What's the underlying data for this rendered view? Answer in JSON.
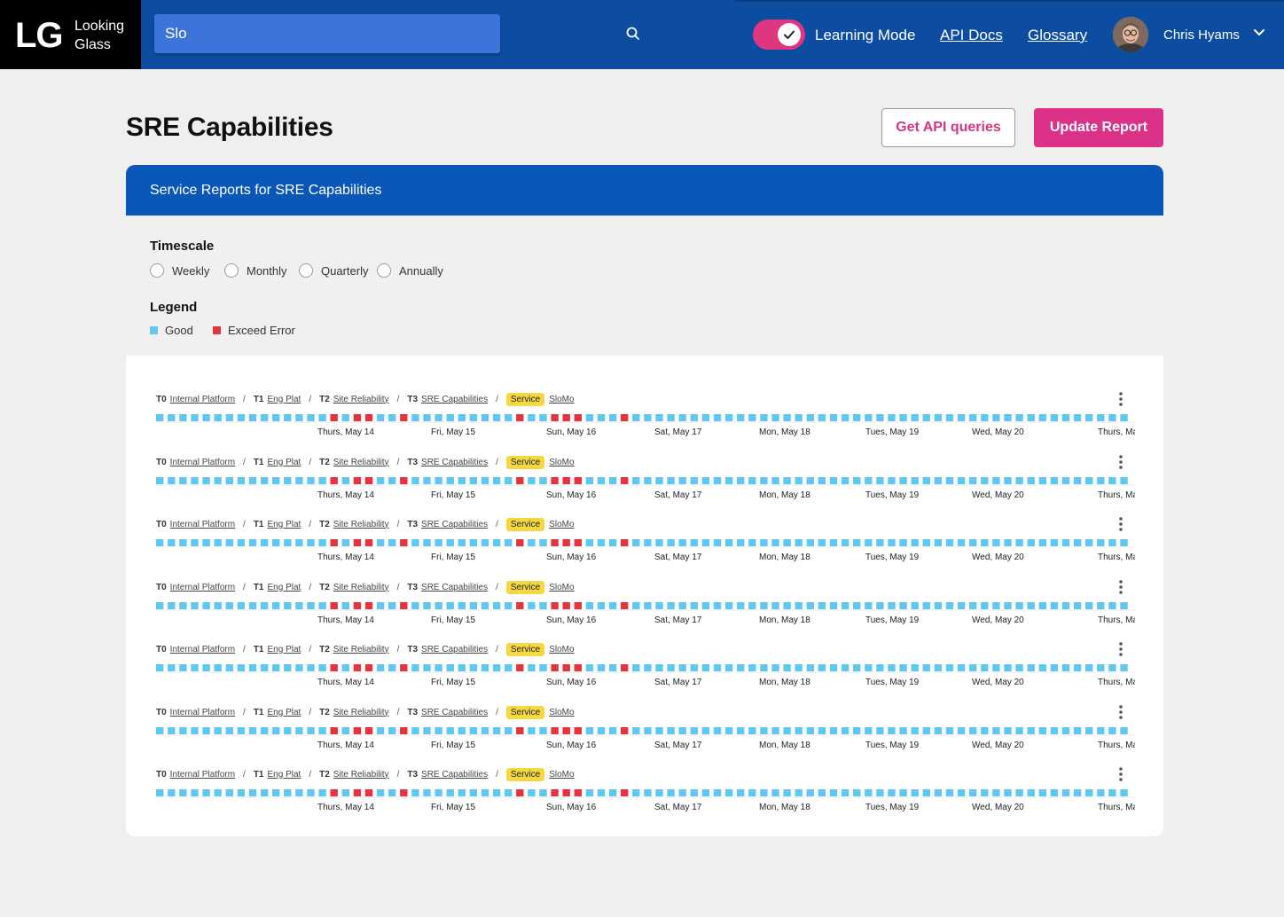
{
  "app": {
    "logo_mark": "LG",
    "logo_line1": "Looking",
    "logo_line2": "Glass"
  },
  "search": {
    "value": "Slo",
    "placeholder": ""
  },
  "header": {
    "toggle_label": "Learning Mode",
    "toggle_on": true,
    "links": [
      "API Docs",
      "Glossary"
    ],
    "user_name": "Chris Hyams"
  },
  "page": {
    "title": "SRE Capabilities",
    "btn_api": "Get API queries",
    "btn_update": "Update Report"
  },
  "panel": {
    "title": "Service Reports for SRE Capabilities",
    "timescale_heading": "Timescale",
    "timescale_options": [
      "Weekly",
      "Monthly",
      "Quarterly",
      "Annually"
    ],
    "legend_heading": "Legend",
    "legend": [
      {
        "label": "Good",
        "color": "#5ec8f2"
      },
      {
        "label": "Exceed Error",
        "color": "#e5343e"
      }
    ]
  },
  "breadcrumb": {
    "t0": "T0",
    "t0_name": "Internal Platform",
    "t1": "T1",
    "t1_name": "Eng Plat",
    "t2": "T2",
    "t2_name": "Site Reliability",
    "t3": "T3",
    "t3_name": "SRE Capabilities",
    "badge": "Service",
    "service_name": "SloMo"
  },
  "timeline": {
    "day_labels": [
      "Thurs, May 14",
      "Fri, May 15",
      "Sun, May 16",
      "Sat, May 17",
      "Mon, May 18",
      "Tues, May 19",
      "Wed, May 20",
      "Thurs, Ma"
    ],
    "cells": "GGGGGGGGGGGGGGGRGRRGGRG_GGGGGGGGGGGGGGGGGGGGGGGGGGGGGGGGGGGGGGGGGGGGGGGGGGGGGGGGGGGGGGGGG",
    "cells_b": "GGGGGGGGGGGGGGGRGRRGGRGGGGGGGGGRGGRRRGGGRGGGGGGGGGGGGGGGGGGGGGGGGGGGGGGGGGGGGGGGGGGGGGGGG",
    "colors": {
      "good": "#5ec8f2",
      "error": "#e5343e"
    }
  },
  "rows_count": 7
}
